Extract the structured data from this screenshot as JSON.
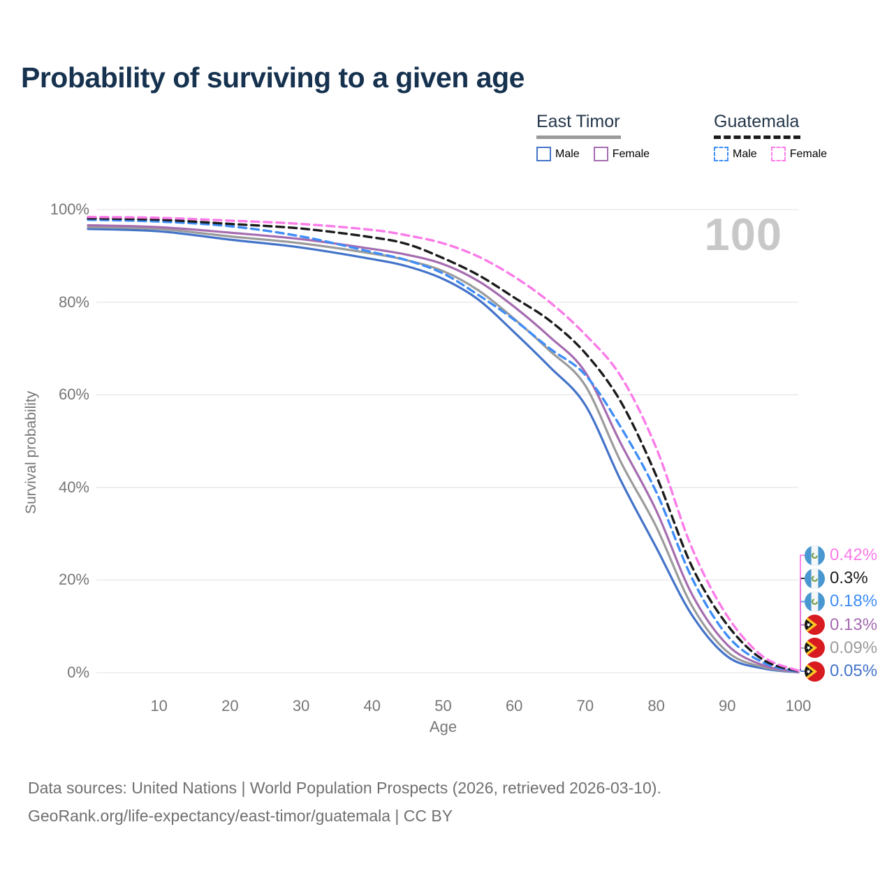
{
  "page": {
    "background": "#ffffff"
  },
  "header": {
    "title": "Probability of surviving to a given age"
  },
  "legend": {
    "groups": [
      {
        "label": "East Timor",
        "underline": "solid",
        "underline_color": "#9a9a9a",
        "items": [
          {
            "label": "Male",
            "color": "#4373c9",
            "dash": false
          },
          {
            "label": "Female",
            "color": "#a56cb0",
            "dash": false
          }
        ]
      },
      {
        "label": "Guatemala",
        "underline": "dashed",
        "underline_color": "#1b1b1b",
        "items": [
          {
            "label": "Male",
            "color": "#3f8df6",
            "dash": true
          },
          {
            "label": "Female",
            "color": "#fb7be8",
            "dash": true
          }
        ]
      }
    ]
  },
  "chart_data": {
    "type": "line",
    "title": "Probability of surviving to a given age",
    "xlabel": "Age",
    "ylabel": "Survival probability",
    "watermark": "100",
    "xlim": [
      0,
      100
    ],
    "ylim": [
      0,
      100
    ],
    "x_ticks": [
      10,
      20,
      30,
      40,
      50,
      60,
      70,
      80,
      90,
      100
    ],
    "y_ticks": [
      0,
      20,
      40,
      60,
      80,
      100
    ],
    "y_tick_suffix": "%",
    "grid": "horizontal",
    "grid_color": "#e7e7e7",
    "legend_position": "top-right",
    "series": [
      {
        "name": "Guatemala Female",
        "country": "Guatemala",
        "sex": "Female",
        "style": "dashed",
        "color": "#fb7be8",
        "flag": "guatemala",
        "end_label": "0.42%",
        "points": [
          [
            0,
            98.4
          ],
          [
            10,
            98.2
          ],
          [
            20,
            97.6
          ],
          [
            30,
            96.9
          ],
          [
            40,
            95.6
          ],
          [
            45,
            94.4
          ],
          [
            50,
            92.7
          ],
          [
            55,
            89.8
          ],
          [
            60,
            85.5
          ],
          [
            65,
            80.0
          ],
          [
            70,
            73.0
          ],
          [
            75,
            64.0
          ],
          [
            80,
            48.5
          ],
          [
            85,
            27.0
          ],
          [
            90,
            12.2
          ],
          [
            95,
            3.5
          ],
          [
            100,
            0.42
          ]
        ]
      },
      {
        "name": "Guatemala Both sexes",
        "country": "Guatemala",
        "sex": "Both",
        "style": "dashed",
        "color": "#1b1b1b",
        "flag": "guatemala",
        "end_label": "0.3%",
        "points": [
          [
            0,
            98.1
          ],
          [
            10,
            97.8
          ],
          [
            20,
            96.9
          ],
          [
            30,
            95.9
          ],
          [
            40,
            94.0
          ],
          [
            45,
            92.5
          ],
          [
            50,
            89.5
          ],
          [
            55,
            85.8
          ],
          [
            60,
            81.0
          ],
          [
            65,
            76.0
          ],
          [
            70,
            69.0
          ],
          [
            75,
            58.5
          ],
          [
            80,
            42.5
          ],
          [
            85,
            23.0
          ],
          [
            90,
            10.3
          ],
          [
            95,
            2.8
          ],
          [
            100,
            0.3
          ]
        ]
      },
      {
        "name": "Guatemala Male",
        "country": "Guatemala",
        "sex": "Male",
        "style": "dashed",
        "color": "#3f8df6",
        "flag": "guatemala",
        "end_label": "0.18%",
        "points": [
          [
            0,
            97.8
          ],
          [
            10,
            97.4
          ],
          [
            20,
            96.4
          ],
          [
            30,
            94.2
          ],
          [
            40,
            90.8
          ],
          [
            45,
            89.0
          ],
          [
            50,
            86.2
          ],
          [
            55,
            81.5
          ],
          [
            60,
            76.2
          ],
          [
            65,
            70.0
          ],
          [
            70,
            64.3
          ],
          [
            75,
            53.0
          ],
          [
            80,
            39.0
          ],
          [
            85,
            20.5
          ],
          [
            90,
            8.0
          ],
          [
            95,
            2.2
          ],
          [
            100,
            0.18
          ]
        ]
      },
      {
        "name": "East Timor Female",
        "country": "East Timor",
        "sex": "Female",
        "style": "solid",
        "color": "#a56cb0",
        "flag": "east-timor",
        "end_label": "0.13%",
        "points": [
          [
            0,
            96.6
          ],
          [
            10,
            96.2
          ],
          [
            20,
            95.0
          ],
          [
            30,
            93.6
          ],
          [
            40,
            91.5
          ],
          [
            45,
            90.2
          ],
          [
            50,
            88.2
          ],
          [
            55,
            84.5
          ],
          [
            60,
            79.0
          ],
          [
            65,
            72.5
          ],
          [
            70,
            64.9
          ],
          [
            75,
            49.5
          ],
          [
            80,
            35.0
          ],
          [
            85,
            17.0
          ],
          [
            90,
            6.0
          ],
          [
            95,
            1.6
          ],
          [
            100,
            0.13
          ]
        ]
      },
      {
        "name": "East Timor Both sexes",
        "country": "East Timor",
        "sex": "Both",
        "style": "solid",
        "color": "#9b9b9b",
        "flag": "east-timor",
        "end_label": "0.09%",
        "points": [
          [
            0,
            96.2
          ],
          [
            10,
            95.8
          ],
          [
            20,
            94.2
          ],
          [
            30,
            92.7
          ],
          [
            40,
            90.5
          ],
          [
            45,
            89.0
          ],
          [
            50,
            86.7
          ],
          [
            55,
            82.5
          ],
          [
            60,
            76.4
          ],
          [
            65,
            69.5
          ],
          [
            70,
            62.0
          ],
          [
            75,
            45.5
          ],
          [
            80,
            31.5
          ],
          [
            85,
            14.5
          ],
          [
            90,
            4.5
          ],
          [
            95,
            1.2
          ],
          [
            100,
            0.09
          ]
        ]
      },
      {
        "name": "East Timor Male",
        "country": "East Timor",
        "sex": "Male",
        "style": "solid",
        "color": "#4373c9",
        "flag": "east-timor",
        "end_label": "0.05%",
        "points": [
          [
            0,
            95.8
          ],
          [
            10,
            95.3
          ],
          [
            20,
            93.5
          ],
          [
            30,
            91.8
          ],
          [
            40,
            89.3
          ],
          [
            45,
            87.7
          ],
          [
            50,
            85.0
          ],
          [
            55,
            80.5
          ],
          [
            60,
            73.5
          ],
          [
            65,
            66.0
          ],
          [
            70,
            57.8
          ],
          [
            75,
            41.5
          ],
          [
            80,
            27.0
          ],
          [
            85,
            12.5
          ],
          [
            90,
            3.5
          ],
          [
            95,
            0.9
          ],
          [
            100,
            0.05
          ]
        ]
      }
    ]
  },
  "flags": {
    "guatemala_blue": "#4997d0",
    "guatemala_white": "#f5f7f8",
    "guatemala_emblem": "#6a9a3c",
    "east_timor_red": "#d81a21",
    "east_timor_yellow": "#ffc726",
    "east_timor_black": "#151515",
    "east_timor_white": "#ffffff"
  },
  "footer": {
    "line1": "Data sources: United Nations | World Population Prospects (2026, retrieved 2026-03-10).",
    "line2": "GeoRank.org/life-expectancy/east-timor/guatemala | CC BY"
  }
}
